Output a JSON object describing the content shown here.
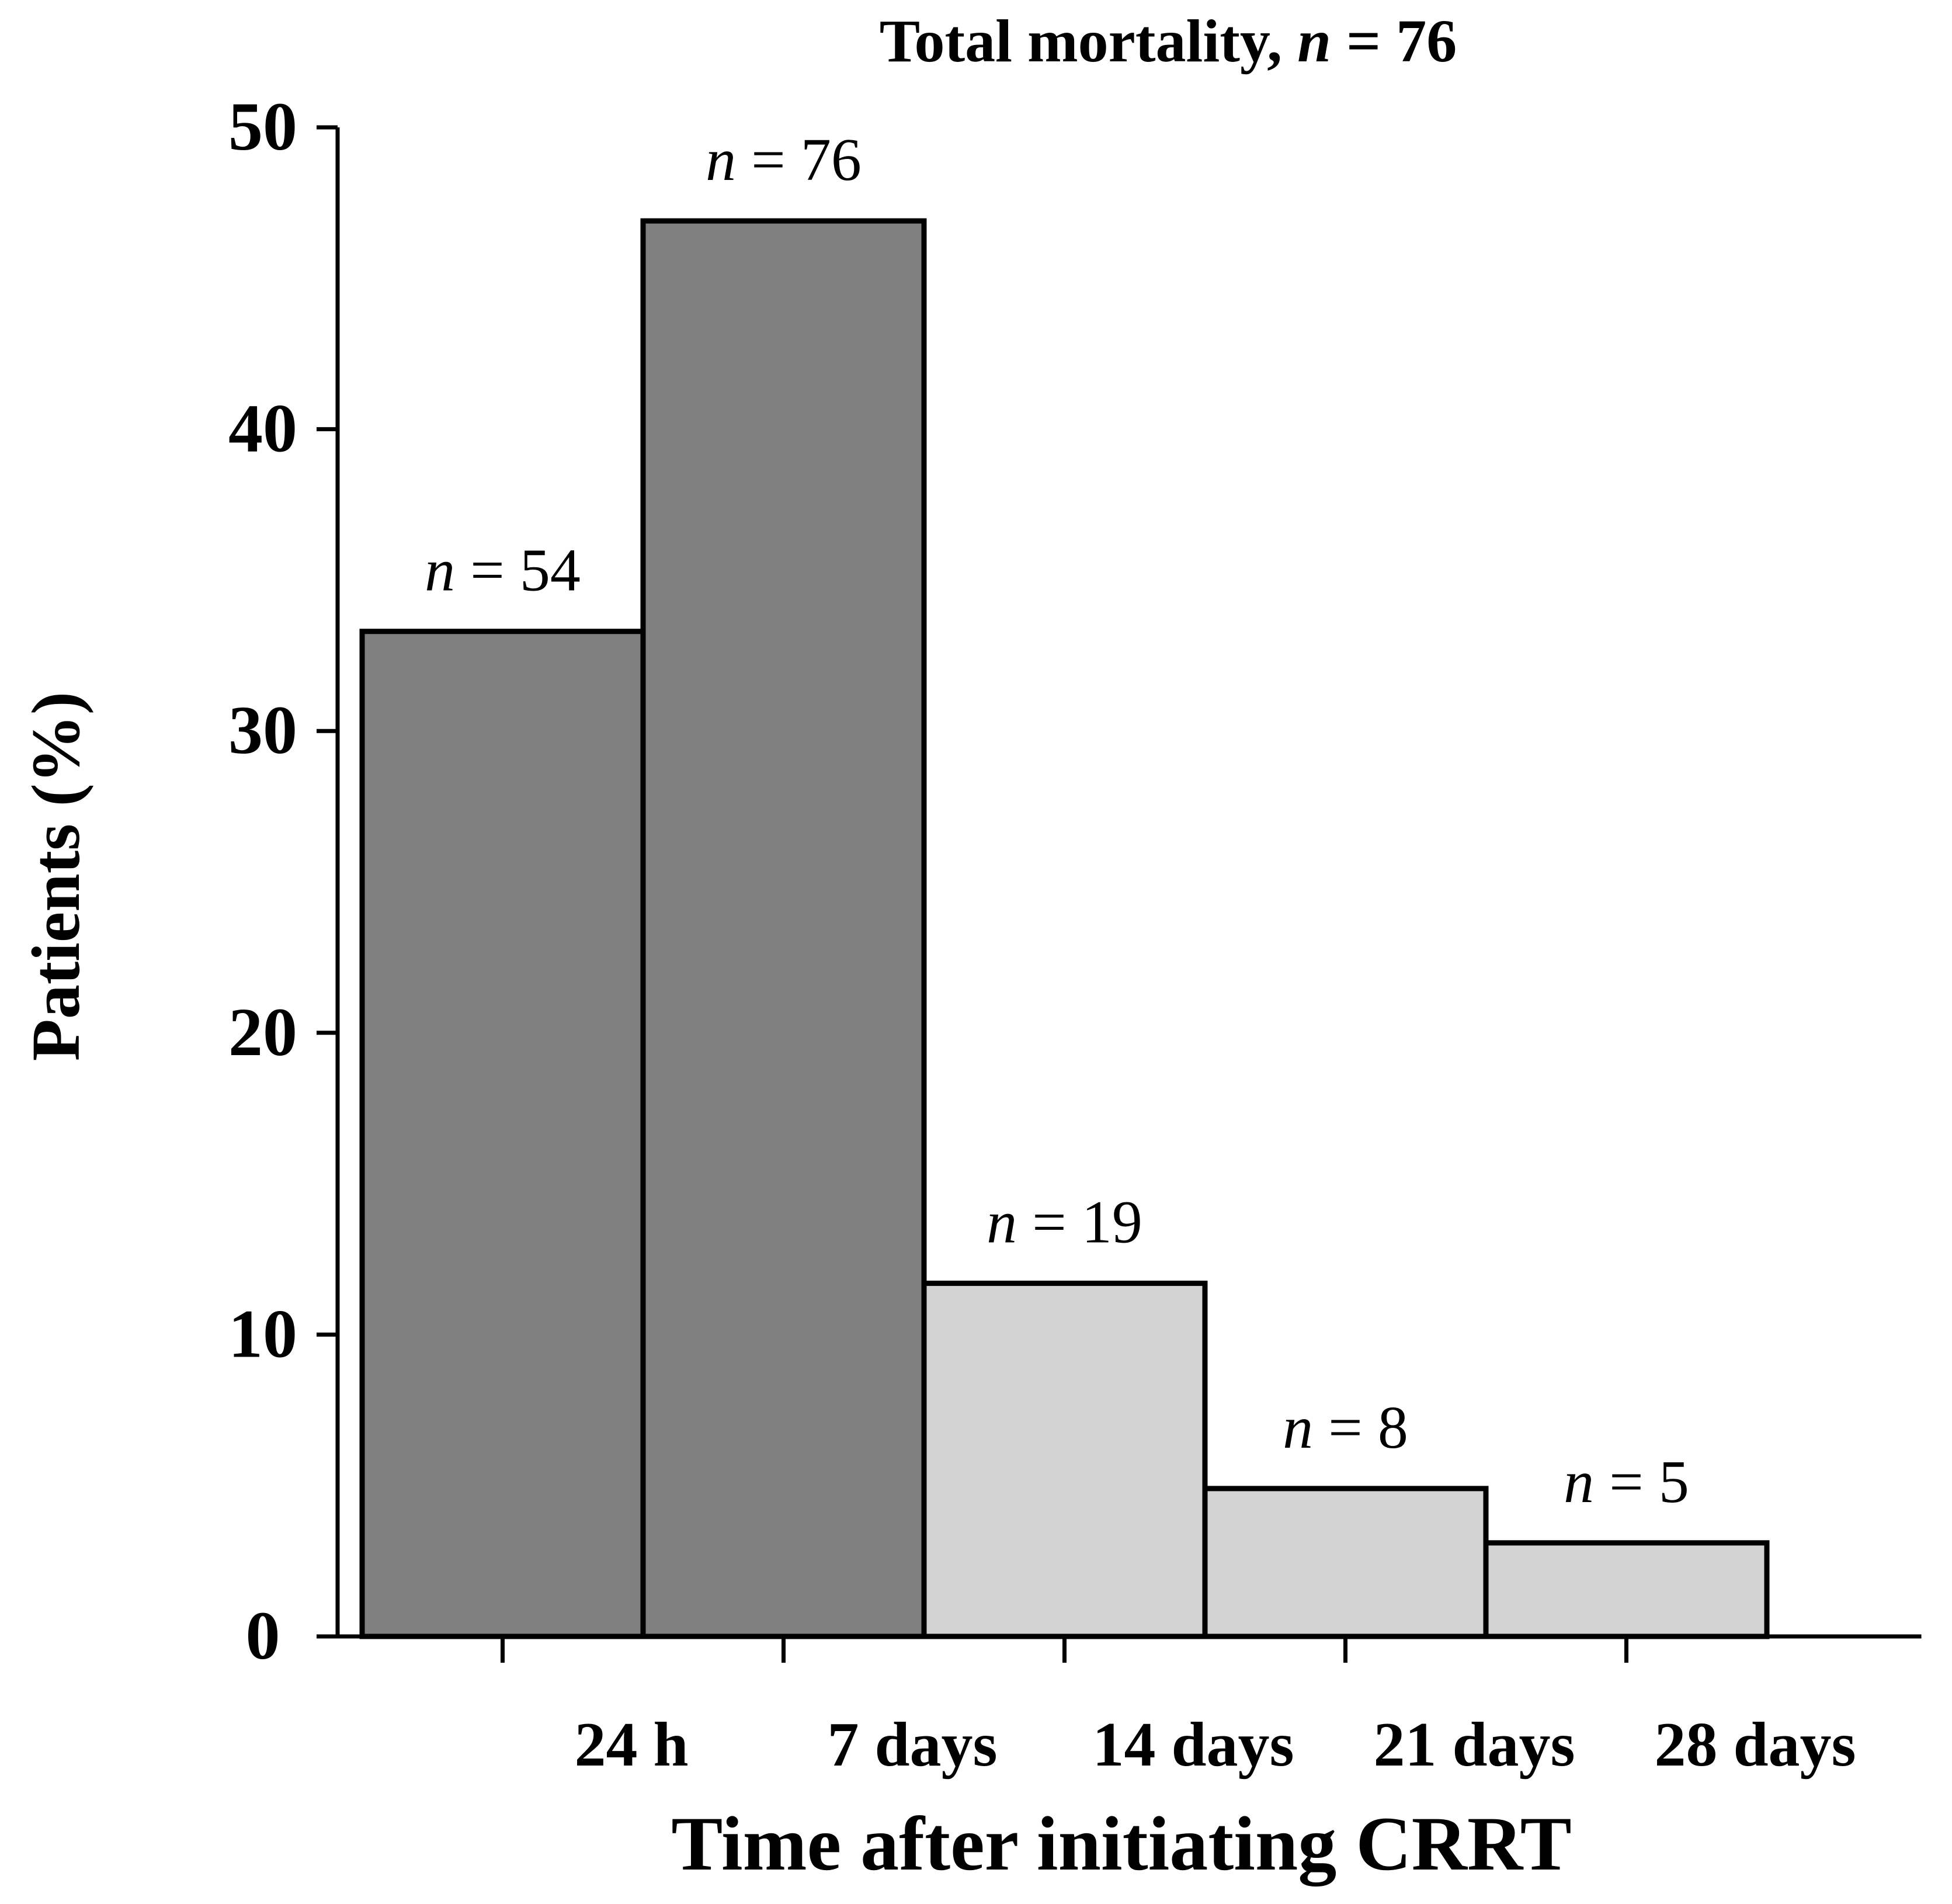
{
  "chart_data": {
    "type": "bar",
    "title_prefix": "Total mortality, ",
    "title_n": "n",
    "title_suffix": " = 76",
    "ylabel": "Patients (%)",
    "xlabel": "Time after initiating CRRT",
    "ylim": [
      0,
      50
    ],
    "y_ticks": [
      0,
      10,
      20,
      30,
      40,
      50
    ],
    "x_tick_labels": [
      "24 h",
      "7 days",
      "14 days",
      "21 days",
      "28 days"
    ],
    "bars": [
      {
        "interval": [
          0,
          1
        ],
        "value": 33.3,
        "label_n": "n",
        "label_rest": " = 54",
        "color": "#808080"
      },
      {
        "interval": [
          1,
          2
        ],
        "value": 46.9,
        "label_n": "n",
        "label_rest": " = 76",
        "color": "#808080"
      },
      {
        "interval": [
          2,
          3
        ],
        "value": 11.7,
        "label_n": "n",
        "label_rest": " = 19",
        "color": "#d3d3d3"
      },
      {
        "interval": [
          3,
          4
        ],
        "value": 4.9,
        "label_n": "n",
        "label_rest": " = 8",
        "color": "#d3d3d3"
      },
      {
        "interval": [
          4,
          5
        ],
        "value": 3.1,
        "label_n": "n",
        "label_rest": " = 5",
        "color": "#d3d3d3"
      }
    ],
    "x_ticks_at": [
      0.5,
      1.5,
      2.5,
      3.5,
      4.5
    ],
    "x_extent": [
      0,
      5.55
    ]
  }
}
